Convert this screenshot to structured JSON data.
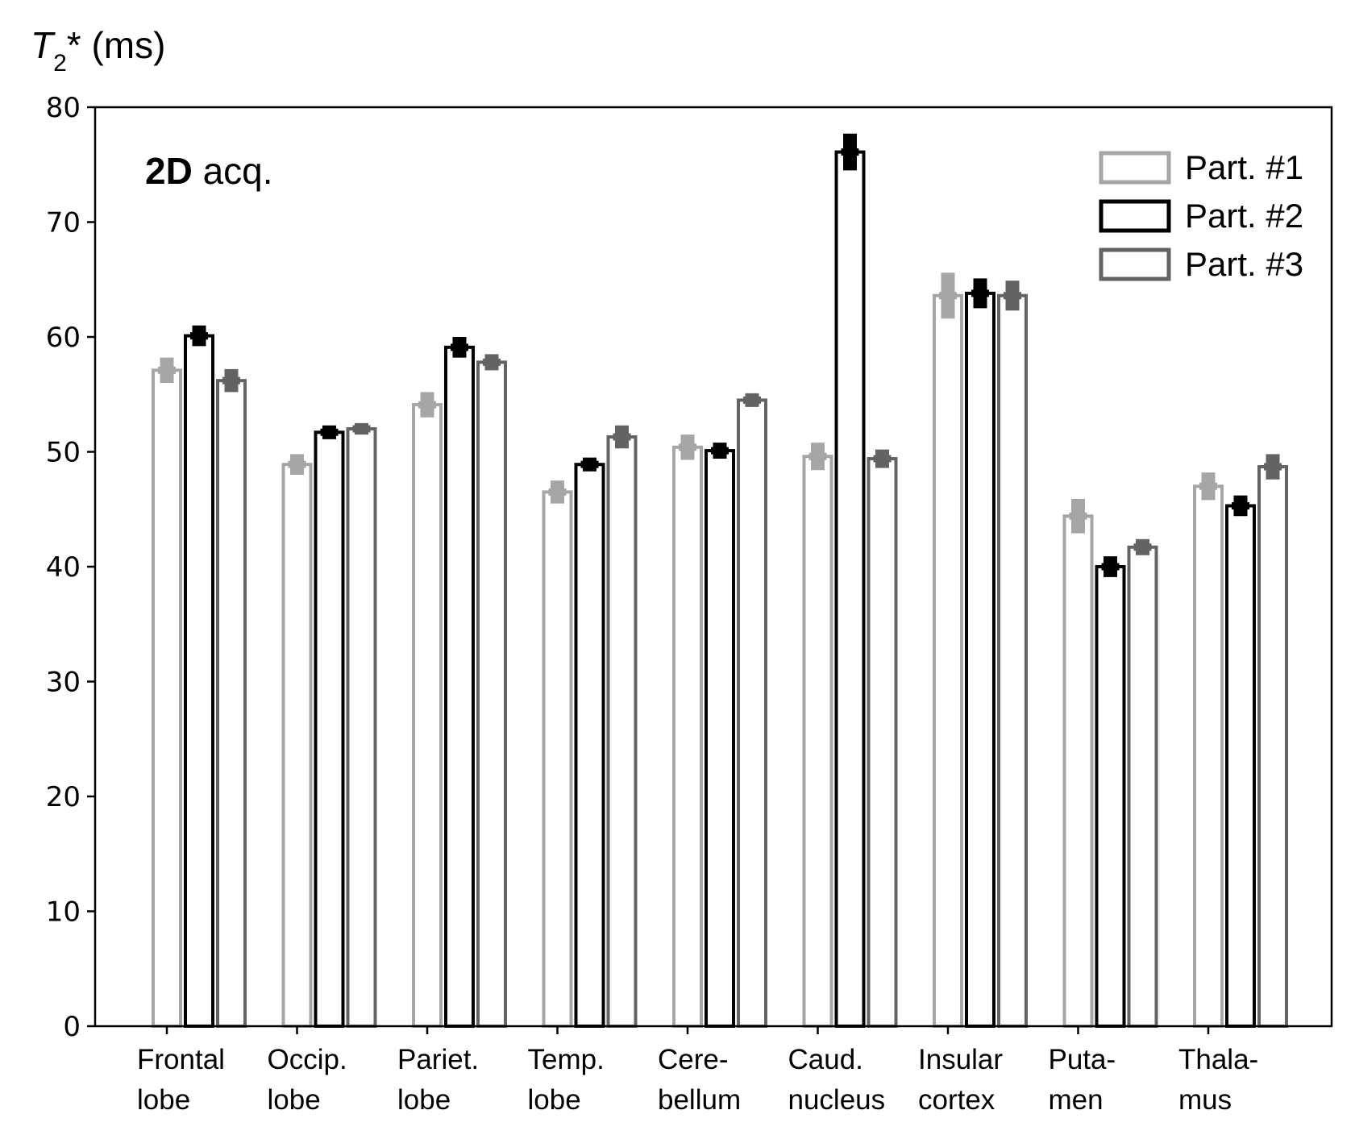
{
  "chart_data": {
    "type": "bar",
    "ylabel": {
      "symbol": "T",
      "subscript": "2",
      "suffix": "* (ms)"
    },
    "annotation": {
      "bold": "2D",
      "rest": " acq."
    },
    "ylim": [
      0,
      80
    ],
    "yticks": [
      0,
      10,
      20,
      30,
      40,
      50,
      60,
      70,
      80
    ],
    "grid": false,
    "legend_position": "top-right",
    "categories": [
      [
        "Frontal",
        "lobe"
      ],
      [
        "Occip.",
        "lobe"
      ],
      [
        "Pariet.",
        "lobe"
      ],
      [
        "Temp.",
        "lobe"
      ],
      [
        "Cere-",
        "bellum"
      ],
      [
        "Caud.",
        "nucleus"
      ],
      [
        "Insular",
        "cortex"
      ],
      [
        "Puta-",
        "men"
      ],
      [
        "Thala-",
        "mus"
      ]
    ],
    "series": [
      {
        "name": "Part. #1",
        "color": "#a6a6a6",
        "values": [
          57.1,
          48.9,
          54.1,
          46.5,
          50.4,
          49.6,
          63.6,
          44.4,
          47.0
        ],
        "errors": [
          1.1,
          0.9,
          1.1,
          1.0,
          1.1,
          1.2,
          2.0,
          1.5,
          1.2
        ]
      },
      {
        "name": "Part. #2",
        "color": "#000000",
        "values": [
          60.1,
          51.7,
          59.1,
          48.9,
          50.1,
          76.1,
          63.8,
          40.0,
          45.3
        ],
        "errors": [
          0.9,
          0.6,
          0.9,
          0.6,
          0.7,
          1.6,
          1.3,
          0.9,
          0.9
        ]
      },
      {
        "name": "Part. #3",
        "color": "#636363",
        "values": [
          56.2,
          52.0,
          57.8,
          51.3,
          54.5,
          49.4,
          63.6,
          41.7,
          48.7
        ],
        "errors": [
          1.0,
          0.5,
          0.7,
          1.0,
          0.6,
          0.8,
          1.3,
          0.7,
          1.1
        ]
      }
    ]
  }
}
